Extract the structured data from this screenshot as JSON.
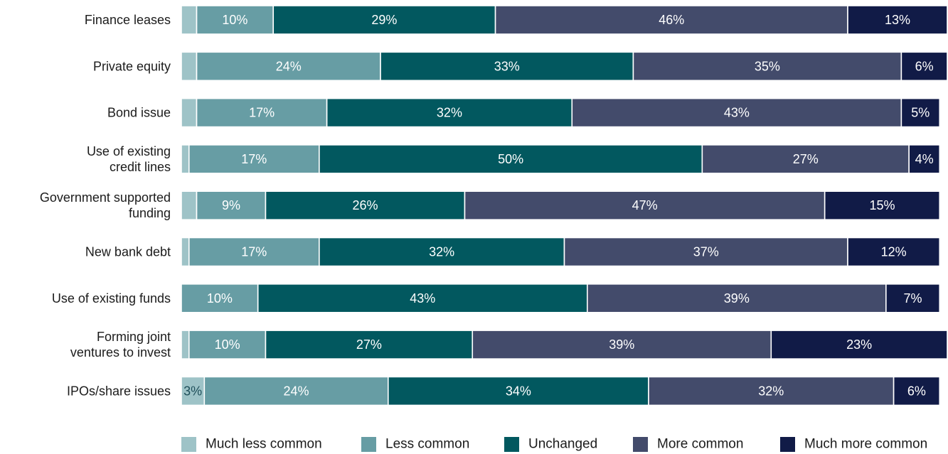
{
  "chart_data": {
    "type": "bar",
    "orientation": "horizontal",
    "stacked": true,
    "categories": [
      "Finance leases",
      "Private equity",
      "Bond issue",
      "Use of existing credit lines",
      "Government supported funding",
      "New bank debt",
      "Use of existing funds",
      "Forming joint ventures to invest",
      "IPOs/share issues"
    ],
    "category_lines": [
      [
        "Finance leases"
      ],
      [
        "Private equity"
      ],
      [
        "Bond issue"
      ],
      [
        "Use of existing",
        "credit lines"
      ],
      [
        "Government supported",
        "funding"
      ],
      [
        "New bank debt"
      ],
      [
        "Use of existing funds"
      ],
      [
        "Forming joint",
        "ventures to invest"
      ],
      [
        "IPOs/share issues"
      ]
    ],
    "series": [
      {
        "name": "Much less common",
        "color": "#9ec3c7",
        "values": [
          2,
          2,
          2,
          1,
          2,
          1,
          0,
          1,
          3
        ],
        "labels": [
          "",
          "",
          "",
          "",
          "",
          "",
          "",
          "",
          "3%"
        ]
      },
      {
        "name": "Less common",
        "color": "#679da4",
        "values": [
          10,
          24,
          17,
          17,
          9,
          17,
          10,
          10,
          24
        ],
        "labels": [
          "10%",
          "24%",
          "17%",
          "17%",
          "9%",
          "17%",
          "10%",
          "10%",
          "24%"
        ]
      },
      {
        "name": "Unchanged",
        "color": "#02585f",
        "values": [
          29,
          33,
          32,
          50,
          26,
          32,
          43,
          27,
          34
        ],
        "labels": [
          "29%",
          "33%",
          "32%",
          "50%",
          "26%",
          "32%",
          "43%",
          "27%",
          "34%"
        ]
      },
      {
        "name": "More common",
        "color": "#434b6b",
        "values": [
          46,
          35,
          43,
          27,
          47,
          37,
          39,
          39,
          32
        ],
        "labels": [
          "46%",
          "35%",
          "43%",
          "27%",
          "47%",
          "37%",
          "39%",
          "39%",
          "32%"
        ]
      },
      {
        "name": "Much more common",
        "color": "#111b47",
        "values": [
          13,
          6,
          5,
          4,
          15,
          12,
          7,
          23,
          6
        ],
        "labels": [
          "13%",
          "6%",
          "5%",
          "4%",
          "15%",
          "12%",
          "7%",
          "23%",
          "6%"
        ]
      }
    ],
    "xlim": [
      0,
      100
    ],
    "title": "",
    "xlabel": "",
    "ylabel": "",
    "grid": false,
    "legend_position": "bottom"
  }
}
